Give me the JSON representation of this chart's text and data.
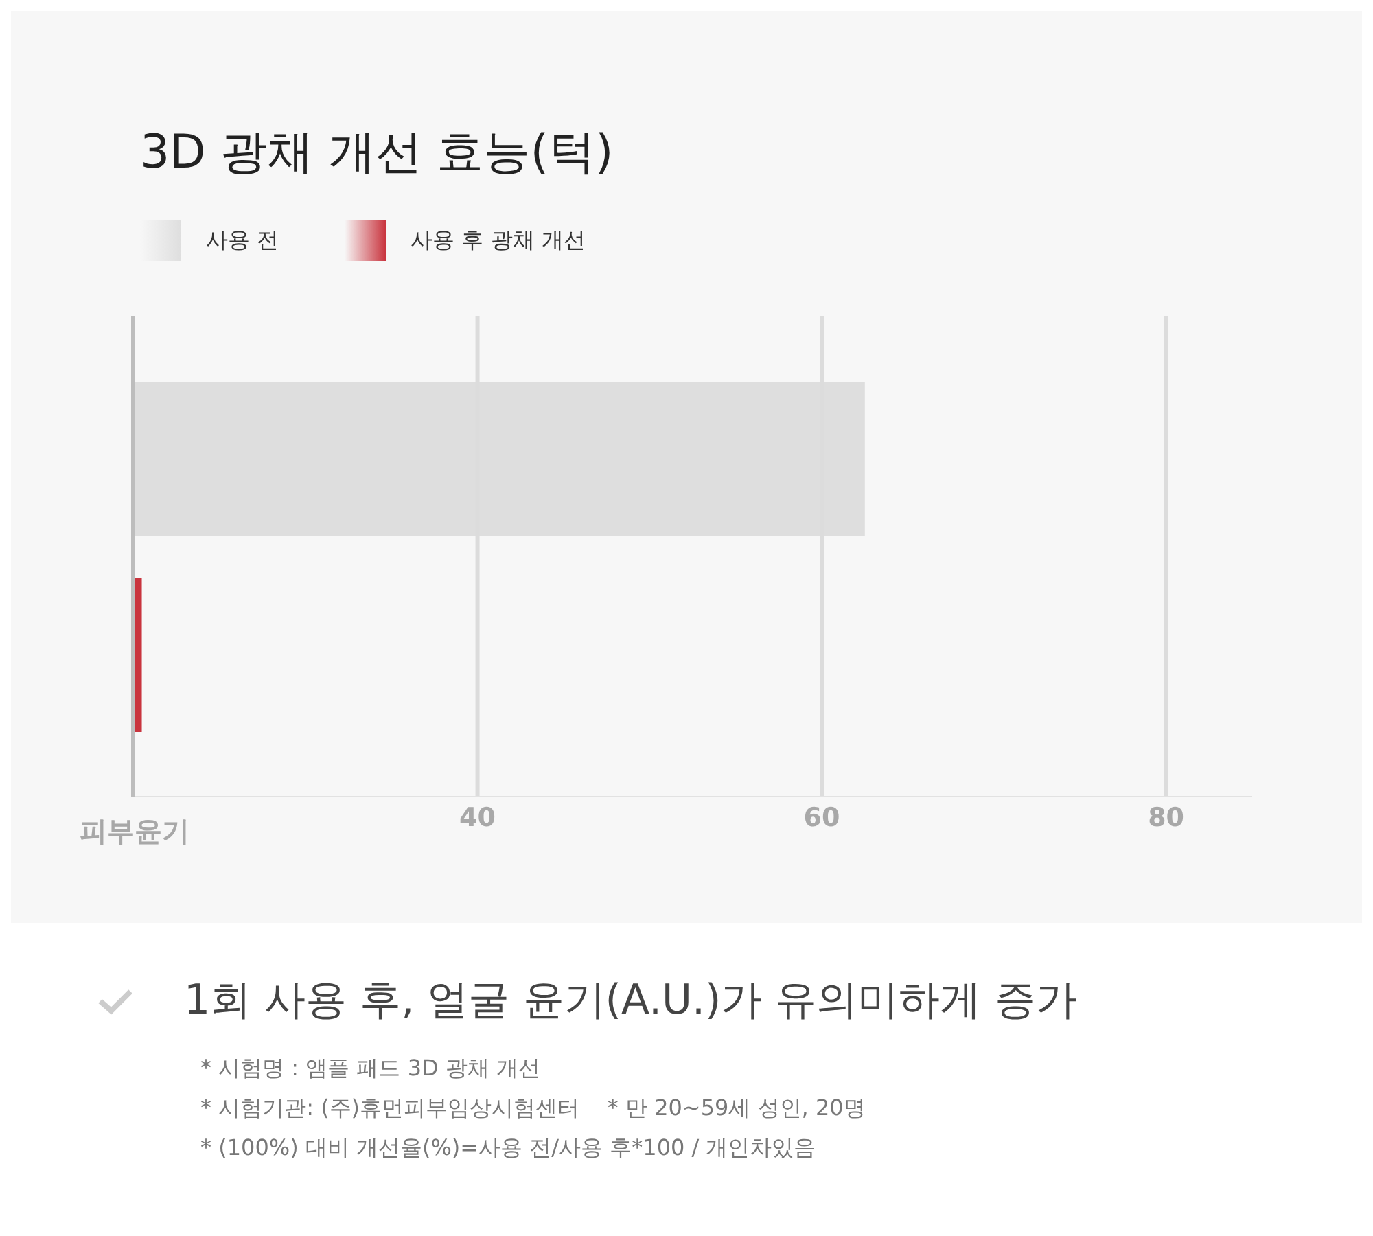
{
  "chart_data": {
    "type": "bar",
    "orientation": "horizontal",
    "title": "3D 광채 개선 효능(턱)",
    "categories": [
      null
    ],
    "xlabel": "피부윤기",
    "series": [
      {
        "name": "사용 전",
        "color": "#dedede",
        "values": [
          62.5
        ]
      },
      {
        "name": "사용 후 광채 개선",
        "color": "#c9343e",
        "values": [
          20.5
        ]
      }
    ],
    "xlim": [
      20,
      85
    ],
    "xticks": [
      40,
      60,
      80
    ],
    "grid": "x",
    "legend": "top left",
    "annotations": [
      "1회 사용 후, 얼굴 윤기(A.U.)가 유의미하게 증가",
      "* 시험명 : 앰플 패드 3D 광채 개선",
      "* 시험기관: (주)휴먼피부임상시험센터    * 만 20~59세 성인, 20명",
      "* (100%) 대비 개선율(%)=사용 전/사용 후*100 / 개인차있음"
    ]
  }
}
